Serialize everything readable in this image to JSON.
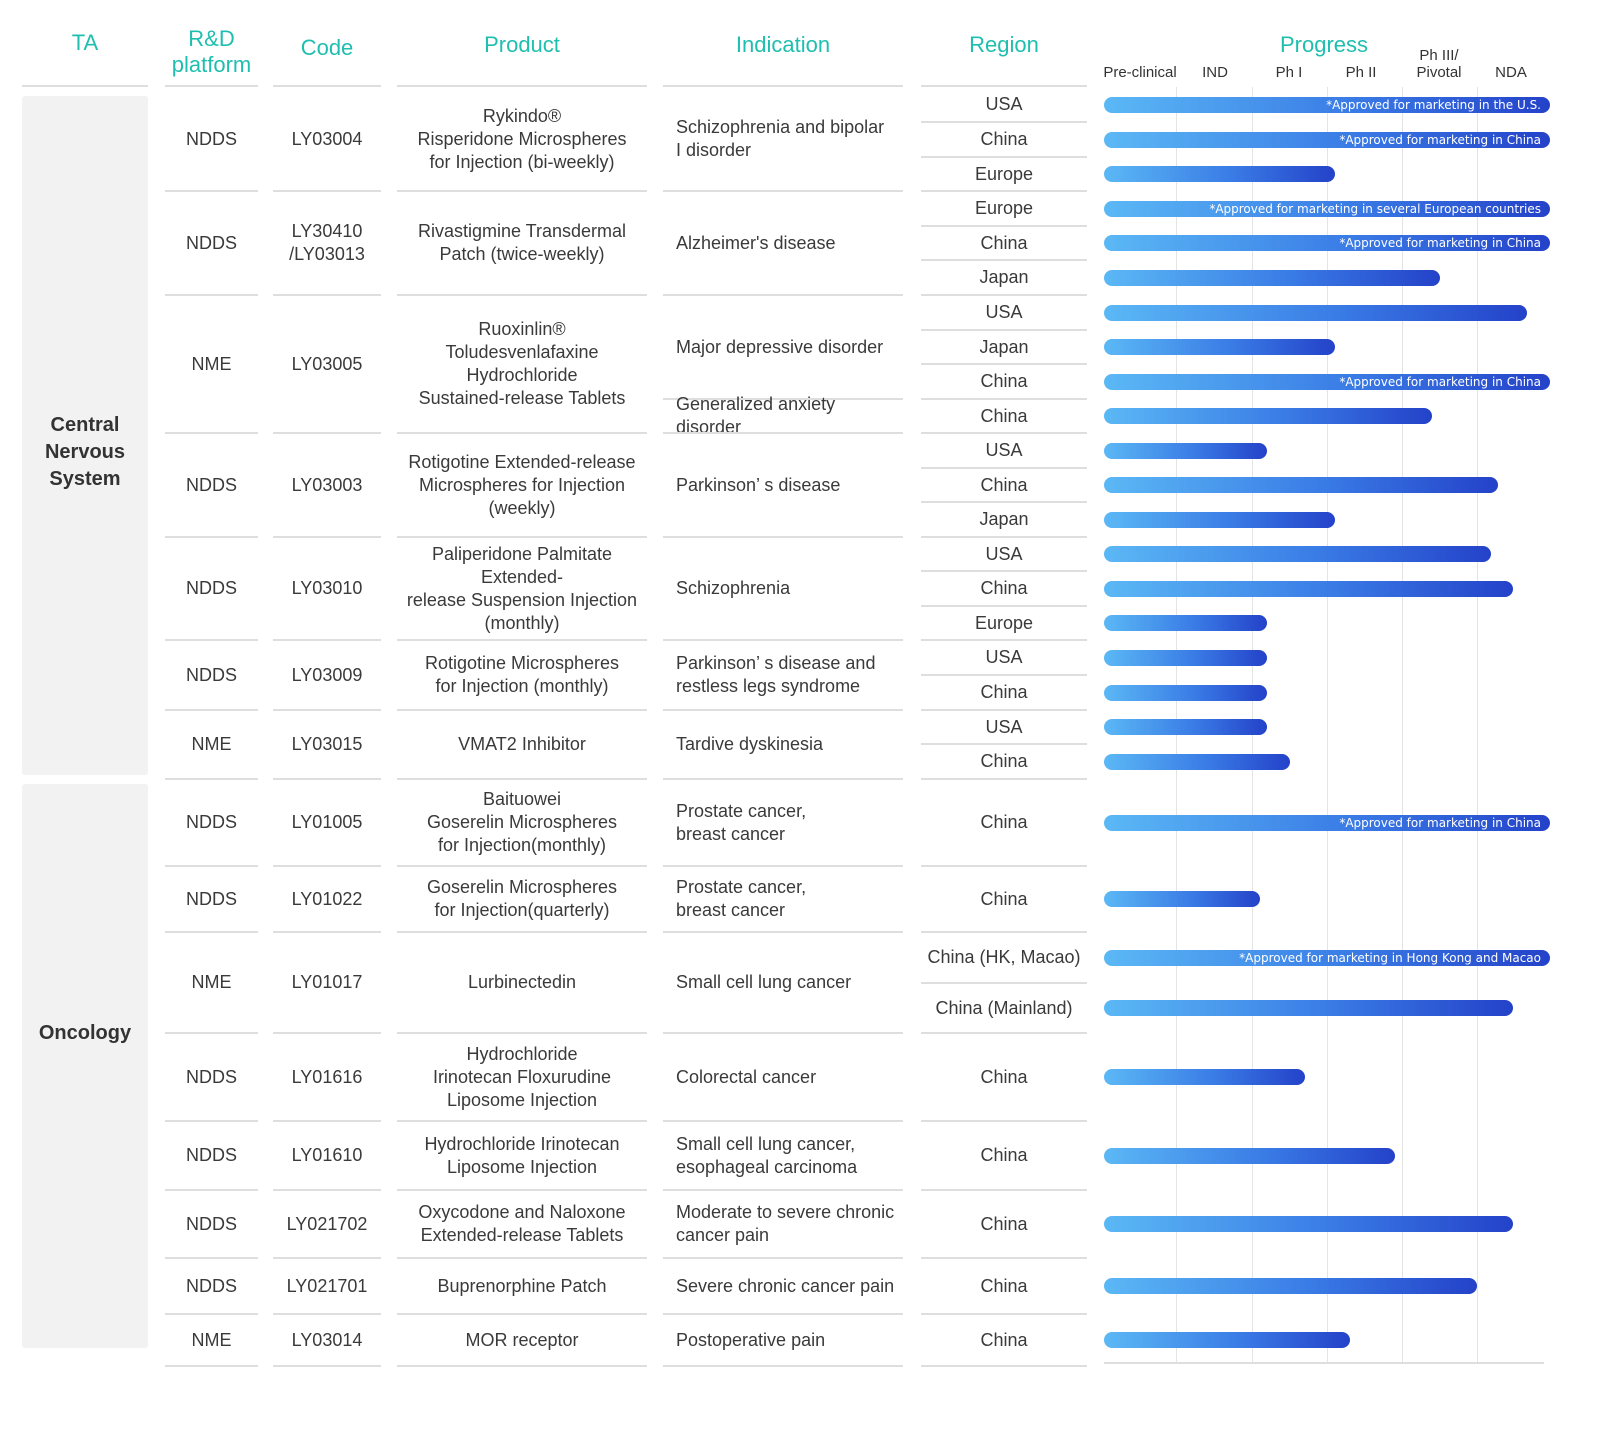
{
  "headers": {
    "ta": "TA",
    "platform": "R&D\nplatform",
    "code": "Code",
    "product": "Product",
    "indication": "Indication",
    "region": "Region",
    "progress": "Progress"
  },
  "therapeutic_areas": [
    "Central\nNervous\nSystem",
    "Oncology"
  ],
  "colors": {
    "header": "#1fbfb0",
    "bar_start": "#5bb8f5",
    "bar_end": "#2442c9",
    "ta_bg": "#f2f2f2",
    "rule": "#dedede"
  },
  "chart_data": {
    "type": "bar",
    "orientation": "horizontal",
    "title": "Progress",
    "stages": [
      "Pre-clinical",
      "IND",
      "Ph I",
      "Ph II",
      "Ph III/\nPivotal",
      "NDA"
    ],
    "value_scale": "stage position, 0 = start of Pre-clinical, 6 = end of NDA",
    "products": [
      {
        "platform": "NDDS",
        "code": "LY03004",
        "product": "Rykindo®\nRisperidone Microspheres\nfor Injection (bi-weekly)",
        "indications": [
          {
            "name": "Schizophrenia and bipolar\nI disorder",
            "regions": [
              {
                "region": "USA",
                "value": 6,
                "note": "*Approved for marketing in the U.S."
              },
              {
                "region": "China",
                "value": 6,
                "note": "*Approved for marketing in China"
              },
              {
                "region": "Europe",
                "value": 3.1,
                "note": ""
              }
            ]
          }
        ]
      },
      {
        "platform": "NDDS",
        "code": "LY30410\n/LY03013",
        "product": "Rivastigmine Transdermal\nPatch (twice-weekly)",
        "indications": [
          {
            "name": "Alzheimer's disease",
            "regions": [
              {
                "region": "Europe",
                "value": 6,
                "note": "*Approved for marketing in several European countries"
              },
              {
                "region": "China",
                "value": 6,
                "note": "*Approved for marketing in China"
              },
              {
                "region": "Japan",
                "value": 4.5,
                "note": ""
              }
            ]
          }
        ]
      },
      {
        "platform": "NME",
        "code": "LY03005",
        "product": "Ruoxinlin®\nToludesvenlafaxine Hydrochloride\nSustained-release Tablets",
        "indications": [
          {
            "name": "Major depressive disorder",
            "regions": [
              {
                "region": "USA",
                "value": 5.7,
                "note": ""
              },
              {
                "region": "Japan",
                "value": 3.1,
                "note": ""
              },
              {
                "region": "China",
                "value": 6,
                "note": "*Approved for marketing in China"
              }
            ]
          },
          {
            "name": "Generalized anxiety disorder",
            "regions": [
              {
                "region": "China",
                "value": 4.4,
                "note": ""
              }
            ]
          }
        ]
      },
      {
        "platform": "NDDS",
        "code": "LY03003",
        "product": "Rotigotine Extended-release\nMicrospheres for Injection\n(weekly)",
        "indications": [
          {
            "name": "Parkinson’ s disease",
            "regions": [
              {
                "region": "USA",
                "value": 2.2,
                "note": ""
              },
              {
                "region": "China",
                "value": 5.3,
                "note": ""
              },
              {
                "region": "Japan",
                "value": 3.1,
                "note": ""
              }
            ]
          }
        ]
      },
      {
        "platform": "NDDS",
        "code": "LY03010",
        "product": "Paliperidone Palmitate Extended-\nrelease Suspension Injection\n(monthly)",
        "indications": [
          {
            "name": "Schizophrenia",
            "regions": [
              {
                "region": "USA",
                "value": 5.2,
                "note": ""
              },
              {
                "region": "China",
                "value": 5.5,
                "note": ""
              },
              {
                "region": "Europe",
                "value": 2.2,
                "note": ""
              }
            ]
          }
        ]
      },
      {
        "platform": "NDDS",
        "code": "LY03009",
        "product": "Rotigotine Microspheres\nfor Injection (monthly)",
        "indications": [
          {
            "name": "Parkinson’ s disease and\nrestless legs syndrome",
            "regions": [
              {
                "region": "USA",
                "value": 2.2,
                "note": ""
              },
              {
                "region": "China",
                "value": 2.2,
                "note": ""
              }
            ]
          }
        ]
      },
      {
        "platform": "NME",
        "code": "LY03015",
        "product": "VMAT2 Inhibitor",
        "indications": [
          {
            "name": "Tardive dyskinesia",
            "regions": [
              {
                "region": "USA",
                "value": 2.2,
                "note": ""
              },
              {
                "region": "China",
                "value": 2.5,
                "note": ""
              }
            ]
          }
        ]
      },
      {
        "platform": "NDDS",
        "code": "LY01005",
        "product": "Baituowei\nGoserelin Microspheres\nfor Injection(monthly)",
        "indications": [
          {
            "name": "Prostate cancer,\nbreast cancer",
            "regions": [
              {
                "region": "China",
                "value": 6,
                "note": "*Approved for marketing in China"
              }
            ]
          }
        ]
      },
      {
        "platform": "NDDS",
        "code": "LY01022",
        "product": "Goserelin Microspheres\nfor Injection(quarterly)",
        "indications": [
          {
            "name": "Prostate cancer,\nbreast cancer",
            "regions": [
              {
                "region": "China",
                "value": 2.1,
                "note": ""
              }
            ]
          }
        ]
      },
      {
        "platform": "NME",
        "code": "LY01017",
        "product": "Lurbinectedin",
        "indications": [
          {
            "name": "Small cell lung cancer",
            "regions": [
              {
                "region": "China (HK, Macao)",
                "value": 6,
                "note": "*Approved for marketing in Hong Kong and Macao"
              },
              {
                "region": "China (Mainland)",
                "value": 5.5,
                "note": ""
              }
            ]
          }
        ]
      },
      {
        "platform": "NDDS",
        "code": "LY01616",
        "product": "Hydrochloride\nIrinotecan Floxurudine\nLiposome Injection",
        "indications": [
          {
            "name": "Colorectal cancer",
            "regions": [
              {
                "region": "China",
                "value": 2.7,
                "note": ""
              }
            ]
          }
        ]
      },
      {
        "platform": "NDDS",
        "code": "LY01610",
        "product": "Hydrochloride Irinotecan\nLiposome Injection",
        "indications": [
          {
            "name": "Small cell lung cancer,\nesophageal carcinoma",
            "regions": [
              {
                "region": "China",
                "value": 3.9,
                "note": ""
              }
            ]
          }
        ]
      },
      {
        "platform": "NDDS",
        "code": "LY021702",
        "product": "Oxycodone and Naloxone\nExtended-release Tablets",
        "indications": [
          {
            "name": "Moderate to severe chronic\ncancer pain",
            "regions": [
              {
                "region": "China",
                "value": 5.5,
                "note": ""
              }
            ]
          }
        ]
      },
      {
        "platform": "NDDS",
        "code": "LY021701",
        "product": "Buprenorphine Patch",
        "indications": [
          {
            "name": "Severe chronic cancer pain",
            "regions": [
              {
                "region": "China",
                "value": 5.0,
                "note": ""
              }
            ]
          }
        ]
      },
      {
        "platform": "NME",
        "code": "LY03014",
        "product": "MOR receptor",
        "indications": [
          {
            "name": "Postoperative pain",
            "regions": [
              {
                "region": "China",
                "value": 3.3,
                "note": ""
              }
            ]
          }
        ]
      }
    ]
  }
}
